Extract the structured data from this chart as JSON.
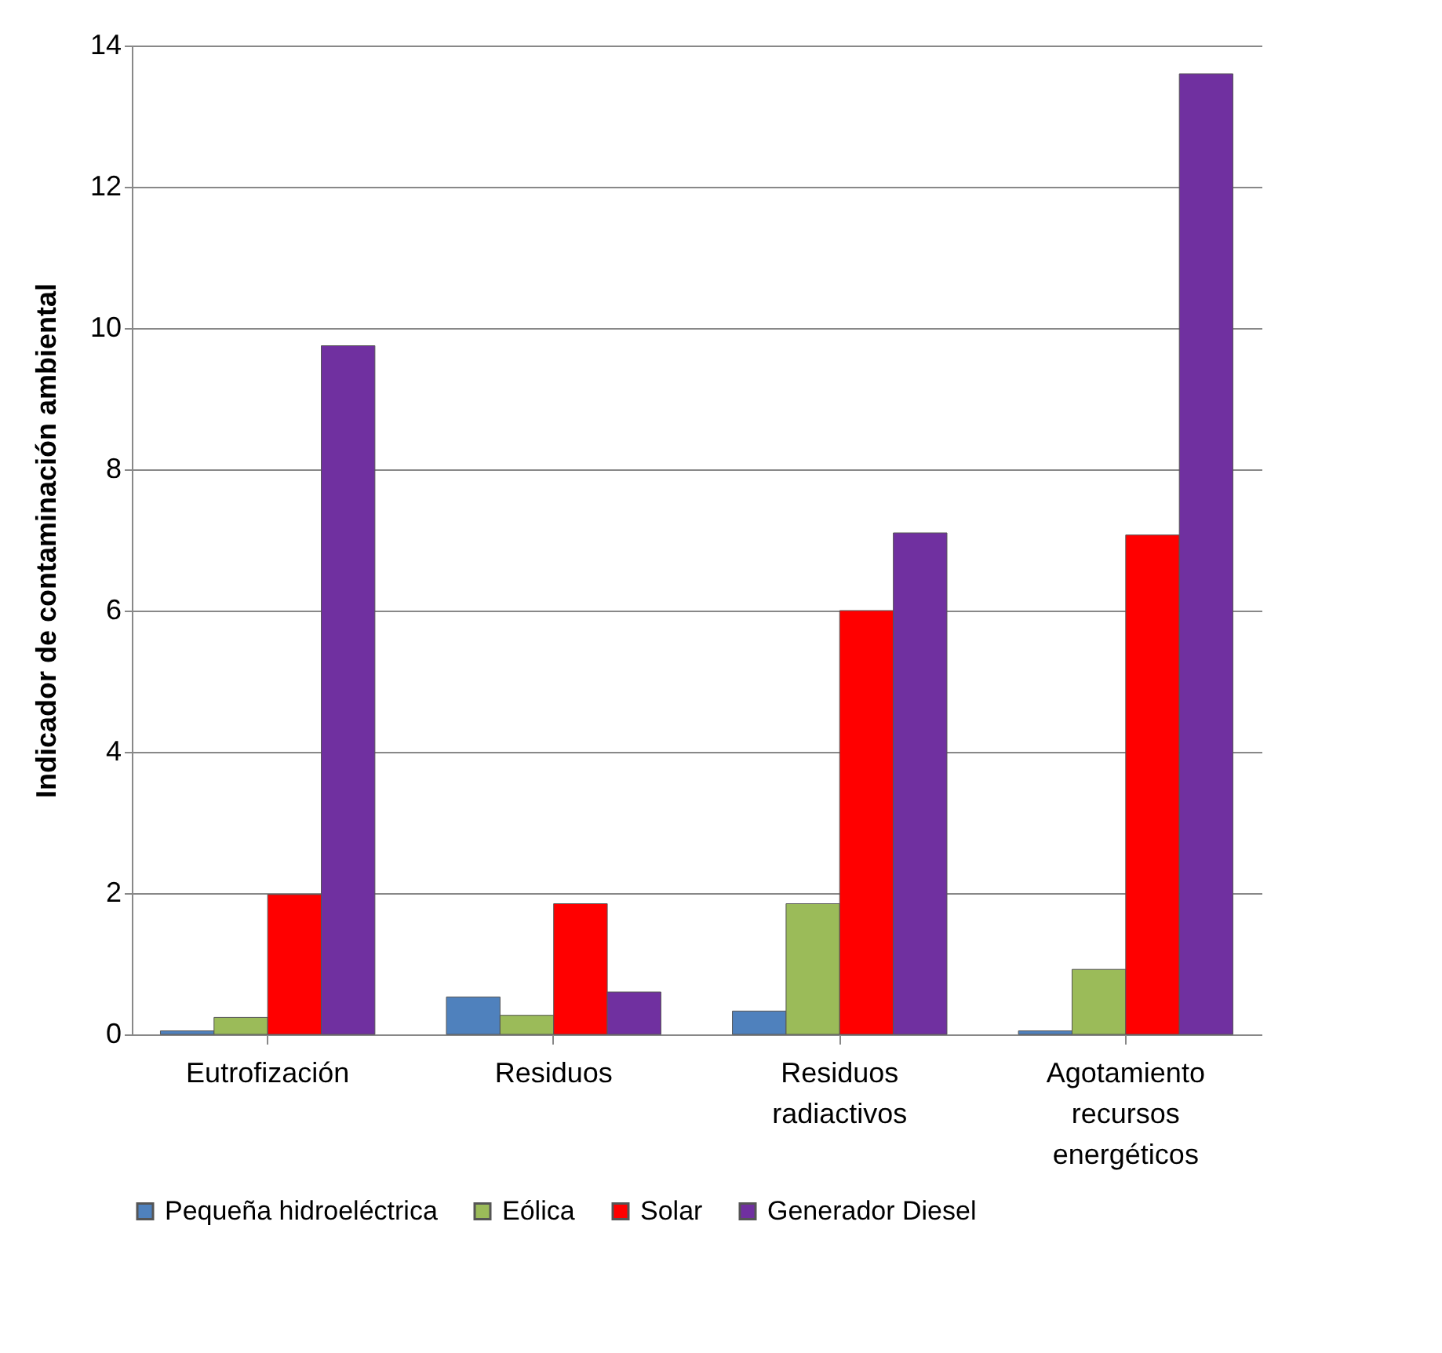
{
  "chart_data": {
    "type": "bar",
    "ylabel": "Indicador de contaminación ambiental",
    "categories": [
      "Eutrofización",
      "Residuos",
      "Residuos radiactivos",
      "Agotamiento recursos energéticos"
    ],
    "series": [
      {
        "name": "Pequeña hidroeléctrica",
        "color": "#4f81bd",
        "values": [
          0.05,
          0.53,
          0.33,
          0.05
        ]
      },
      {
        "name": "Eólica",
        "color": "#9bbb59",
        "values": [
          0.24,
          0.27,
          1.85,
          0.92
        ]
      },
      {
        "name": "Solar",
        "color": "#ff0000",
        "values": [
          1.98,
          1.85,
          6.0,
          7.07
        ]
      },
      {
        "name": "Generador Diesel",
        "color": "#7030a0",
        "values": [
          9.75,
          0.6,
          7.1,
          13.6
        ]
      }
    ],
    "ylim": [
      0,
      14
    ],
    "yticks": [
      0,
      2,
      4,
      6,
      8,
      10,
      12,
      14
    ],
    "grid": "y",
    "legend": "bottom"
  }
}
